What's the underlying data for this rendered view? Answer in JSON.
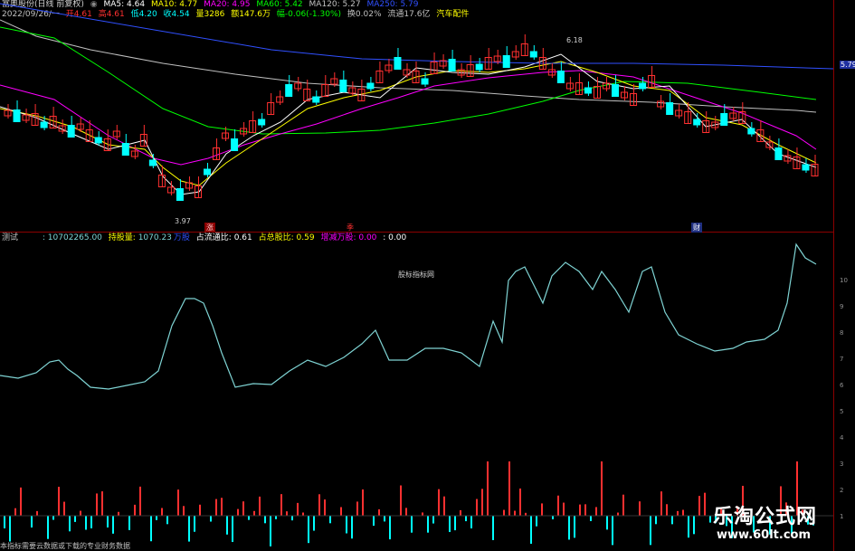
{
  "header": {
    "title": "富奥股份(日线 前复权)",
    "ma5": "MA5: 4.64",
    "ma10": "MA10: 4.77",
    "ma20": "MA20: 4.95",
    "ma60": "MA60: 5.42",
    "ma120": "MA120: 5.27",
    "ma250": "MA250: 5.79"
  },
  "subheader": {
    "date": "2022/09/26/一",
    "open": "开4.61",
    "high": "高4.61",
    "low": "低4.20",
    "close": "收4.54",
    "volume": "量3286",
    "amount": "额147.6万",
    "change": "幅-0.06(-1.30%)",
    "turnover": "换0.02%",
    "float": "流通17.6亿",
    "sector": "汽车配件"
  },
  "price_labels": {
    "high_label": "6.18",
    "low_label": "3.97",
    "ma250_axis": "5.79"
  },
  "markers": {
    "zhang": "涨",
    "ji": "季",
    "cai": "财"
  },
  "indicator": {
    "name": "测试",
    "value1": ": 10702265.00",
    "holdings_label": "持股量: ",
    "holdings_value": "1070.23",
    "wan_label": "万股",
    "float_ratio_label": "占流通比: ",
    "float_ratio_value": "0.61",
    "total_ratio_label": "占总股比: ",
    "total_ratio_value": "0.59",
    "change_label": "增减万股: ",
    "change_value": "0.00",
    "extra": ": 0.00"
  },
  "axis_ticks": [
    "10",
    "9",
    "8",
    "7",
    "6",
    "5",
    "4",
    "3",
    "2",
    "1"
  ],
  "watermark_mid": "股标指标网",
  "watermark": {
    "title": "乐淘公式网",
    "url": "www.60lt.com"
  },
  "footer": "本指标需要云数据或下载的专业财务数据",
  "colors": {
    "up": "#ff3030",
    "down": "#00ffff",
    "ma5": "#ffffff",
    "ma10": "#ffff00",
    "ma20": "#ff00ff",
    "ma60": "#00ff00",
    "ma120": "#c0c0c0",
    "ma250": "#3050ff",
    "holdings_line": "#7fd4d4"
  }
}
